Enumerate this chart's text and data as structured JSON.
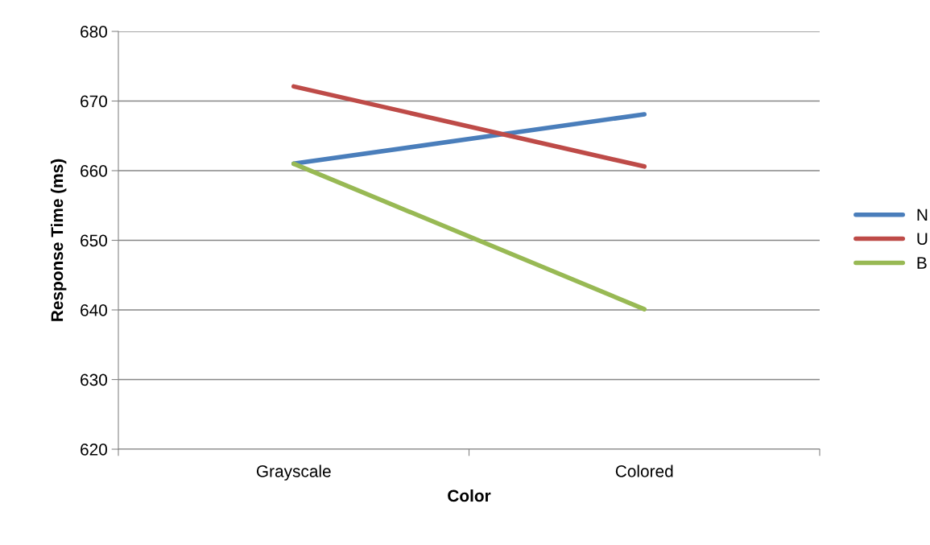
{
  "chart_data": {
    "type": "line",
    "xlabel": "Color",
    "ylabel": "Response Time (ms)",
    "categories": [
      "Grayscale",
      "Colored"
    ],
    "series": [
      {
        "name": "N",
        "color": "#4a7ebb",
        "values": [
          661,
          668.1
        ]
      },
      {
        "name": "U",
        "color": "#be4b48",
        "values": [
          672.1,
          660.6
        ]
      },
      {
        "name": "B",
        "color": "#98b954",
        "values": [
          661,
          640.1
        ]
      }
    ],
    "ylim": [
      620,
      680
    ],
    "yticks": [
      620,
      630,
      640,
      650,
      660,
      670,
      680
    ],
    "grid": "y",
    "legend": "right",
    "marker": "none",
    "line_style": "solid"
  }
}
